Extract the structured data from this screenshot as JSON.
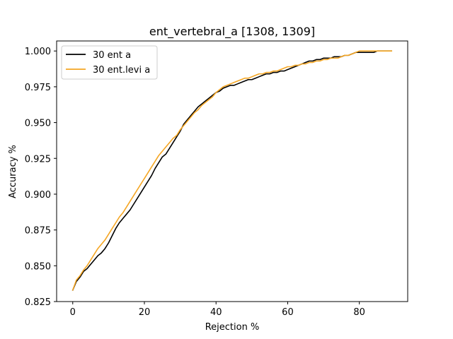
{
  "chart_data": {
    "type": "line",
    "title": "ent_vertebral_a  [1308, 1309]",
    "xlabel": "Rejection %",
    "ylabel": "Accuracy %",
    "xlim": [
      -4.5,
      93.5
    ],
    "ylim": [
      0.825,
      1.007
    ],
    "x_ticks": [
      0,
      20,
      40,
      60,
      80
    ],
    "x_tick_labels": [
      "0",
      "20",
      "40",
      "60",
      "80"
    ],
    "y_ticks": [
      0.825,
      0.85,
      0.875,
      0.9,
      0.925,
      0.95,
      0.975,
      1.0
    ],
    "y_tick_labels": [
      "0.825",
      "0.850",
      "0.875",
      "0.900",
      "0.925",
      "0.950",
      "0.975",
      "1.000"
    ],
    "grid": false,
    "legend_position": "top-left",
    "series": [
      {
        "name": "30 ent a",
        "color": "#000000",
        "points": [
          [
            0,
            0.833
          ],
          [
            1,
            0.839
          ],
          [
            2,
            0.842
          ],
          [
            3,
            0.846
          ],
          [
            4,
            0.848
          ],
          [
            5,
            0.851
          ],
          [
            6,
            0.854
          ],
          [
            7,
            0.857
          ],
          [
            8,
            0.859
          ],
          [
            9,
            0.862
          ],
          [
            10,
            0.866
          ],
          [
            11,
            0.871
          ],
          [
            12,
            0.876
          ],
          [
            13,
            0.88
          ],
          [
            14,
            0.883
          ],
          [
            15,
            0.886
          ],
          [
            16,
            0.889
          ],
          [
            17,
            0.893
          ],
          [
            18,
            0.897
          ],
          [
            19,
            0.901
          ],
          [
            20,
            0.905
          ],
          [
            21,
            0.909
          ],
          [
            22,
            0.913
          ],
          [
            23,
            0.918
          ],
          [
            24,
            0.922
          ],
          [
            25,
            0.926
          ],
          [
            26,
            0.928
          ],
          [
            27,
            0.932
          ],
          [
            28,
            0.936
          ],
          [
            29,
            0.94
          ],
          [
            30,
            0.944
          ],
          [
            31,
            0.949
          ],
          [
            32,
            0.952
          ],
          [
            33,
            0.955
          ],
          [
            34,
            0.958
          ],
          [
            35,
            0.961
          ],
          [
            36,
            0.963
          ],
          [
            37,
            0.965
          ],
          [
            38,
            0.967
          ],
          [
            39,
            0.969
          ],
          [
            40,
            0.971
          ],
          [
            41,
            0.972
          ],
          [
            42,
            0.974
          ],
          [
            43,
            0.975
          ],
          [
            44,
            0.976
          ],
          [
            45,
            0.976
          ],
          [
            46,
            0.977
          ],
          [
            47,
            0.978
          ],
          [
            48,
            0.979
          ],
          [
            49,
            0.98
          ],
          [
            50,
            0.98
          ],
          [
            51,
            0.981
          ],
          [
            52,
            0.982
          ],
          [
            53,
            0.983
          ],
          [
            54,
            0.984
          ],
          [
            55,
            0.984
          ],
          [
            56,
            0.985
          ],
          [
            57,
            0.985
          ],
          [
            58,
            0.986
          ],
          [
            59,
            0.986
          ],
          [
            60,
            0.987
          ],
          [
            61,
            0.988
          ],
          [
            62,
            0.989
          ],
          [
            63,
            0.99
          ],
          [
            64,
            0.991
          ],
          [
            65,
            0.992
          ],
          [
            66,
            0.993
          ],
          [
            67,
            0.993
          ],
          [
            68,
            0.994
          ],
          [
            69,
            0.994
          ],
          [
            70,
            0.995
          ],
          [
            71,
            0.995
          ],
          [
            72,
            0.995
          ],
          [
            73,
            0.996
          ],
          [
            74,
            0.996
          ],
          [
            75,
            0.996
          ],
          [
            76,
            0.997
          ],
          [
            77,
            0.997
          ],
          [
            78,
            0.998
          ],
          [
            79,
            0.999
          ],
          [
            80,
            0.999
          ],
          [
            81,
            0.999
          ],
          [
            82,
            0.999
          ],
          [
            83,
            0.999
          ],
          [
            84,
            0.999
          ],
          [
            85,
            1.0
          ],
          [
            86,
            1.0
          ],
          [
            87,
            1.0
          ],
          [
            88,
            1.0
          ],
          [
            89,
            1.0
          ]
        ]
      },
      {
        "name": "30 ent.levi a",
        "color": "#f5a623",
        "points": [
          [
            0,
            0.833
          ],
          [
            1,
            0.84
          ],
          [
            2,
            0.843
          ],
          [
            3,
            0.847
          ],
          [
            4,
            0.85
          ],
          [
            5,
            0.854
          ],
          [
            6,
            0.858
          ],
          [
            7,
            0.862
          ],
          [
            8,
            0.865
          ],
          [
            9,
            0.868
          ],
          [
            10,
            0.872
          ],
          [
            11,
            0.876
          ],
          [
            12,
            0.88
          ],
          [
            13,
            0.884
          ],
          [
            14,
            0.887
          ],
          [
            15,
            0.891
          ],
          [
            16,
            0.895
          ],
          [
            17,
            0.899
          ],
          [
            18,
            0.903
          ],
          [
            19,
            0.907
          ],
          [
            20,
            0.911
          ],
          [
            21,
            0.915
          ],
          [
            22,
            0.919
          ],
          [
            23,
            0.923
          ],
          [
            24,
            0.927
          ],
          [
            25,
            0.93
          ],
          [
            26,
            0.933
          ],
          [
            27,
            0.936
          ],
          [
            28,
            0.939
          ],
          [
            29,
            0.941
          ],
          [
            30,
            0.945
          ],
          [
            31,
            0.948
          ],
          [
            32,
            0.951
          ],
          [
            33,
            0.954
          ],
          [
            34,
            0.957
          ],
          [
            35,
            0.959
          ],
          [
            36,
            0.962
          ],
          [
            37,
            0.964
          ],
          [
            38,
            0.966
          ],
          [
            39,
            0.968
          ],
          [
            40,
            0.971
          ],
          [
            41,
            0.973
          ],
          [
            42,
            0.975
          ],
          [
            43,
            0.976
          ],
          [
            44,
            0.977
          ],
          [
            45,
            0.978
          ],
          [
            46,
            0.979
          ],
          [
            47,
            0.98
          ],
          [
            48,
            0.981
          ],
          [
            49,
            0.981
          ],
          [
            50,
            0.982
          ],
          [
            51,
            0.983
          ],
          [
            52,
            0.984
          ],
          [
            53,
            0.984
          ],
          [
            54,
            0.985
          ],
          [
            55,
            0.985
          ],
          [
            56,
            0.986
          ],
          [
            57,
            0.986
          ],
          [
            58,
            0.987
          ],
          [
            59,
            0.988
          ],
          [
            60,
            0.989
          ],
          [
            61,
            0.989
          ],
          [
            62,
            0.99
          ],
          [
            63,
            0.99
          ],
          [
            64,
            0.991
          ],
          [
            65,
            0.991
          ],
          [
            66,
            0.992
          ],
          [
            67,
            0.992
          ],
          [
            68,
            0.993
          ],
          [
            69,
            0.993
          ],
          [
            70,
            0.994
          ],
          [
            71,
            0.994
          ],
          [
            72,
            0.995
          ],
          [
            73,
            0.995
          ],
          [
            74,
            0.995
          ],
          [
            75,
            0.996
          ],
          [
            76,
            0.997
          ],
          [
            77,
            0.997
          ],
          [
            78,
            0.998
          ],
          [
            79,
            0.999
          ],
          [
            80,
            1.0
          ],
          [
            81,
            1.0
          ],
          [
            82,
            1.0
          ],
          [
            83,
            1.0
          ],
          [
            84,
            1.0
          ],
          [
            85,
            1.0
          ],
          [
            86,
            1.0
          ],
          [
            87,
            1.0
          ],
          [
            88,
            1.0
          ],
          [
            89,
            1.0
          ]
        ]
      }
    ]
  }
}
